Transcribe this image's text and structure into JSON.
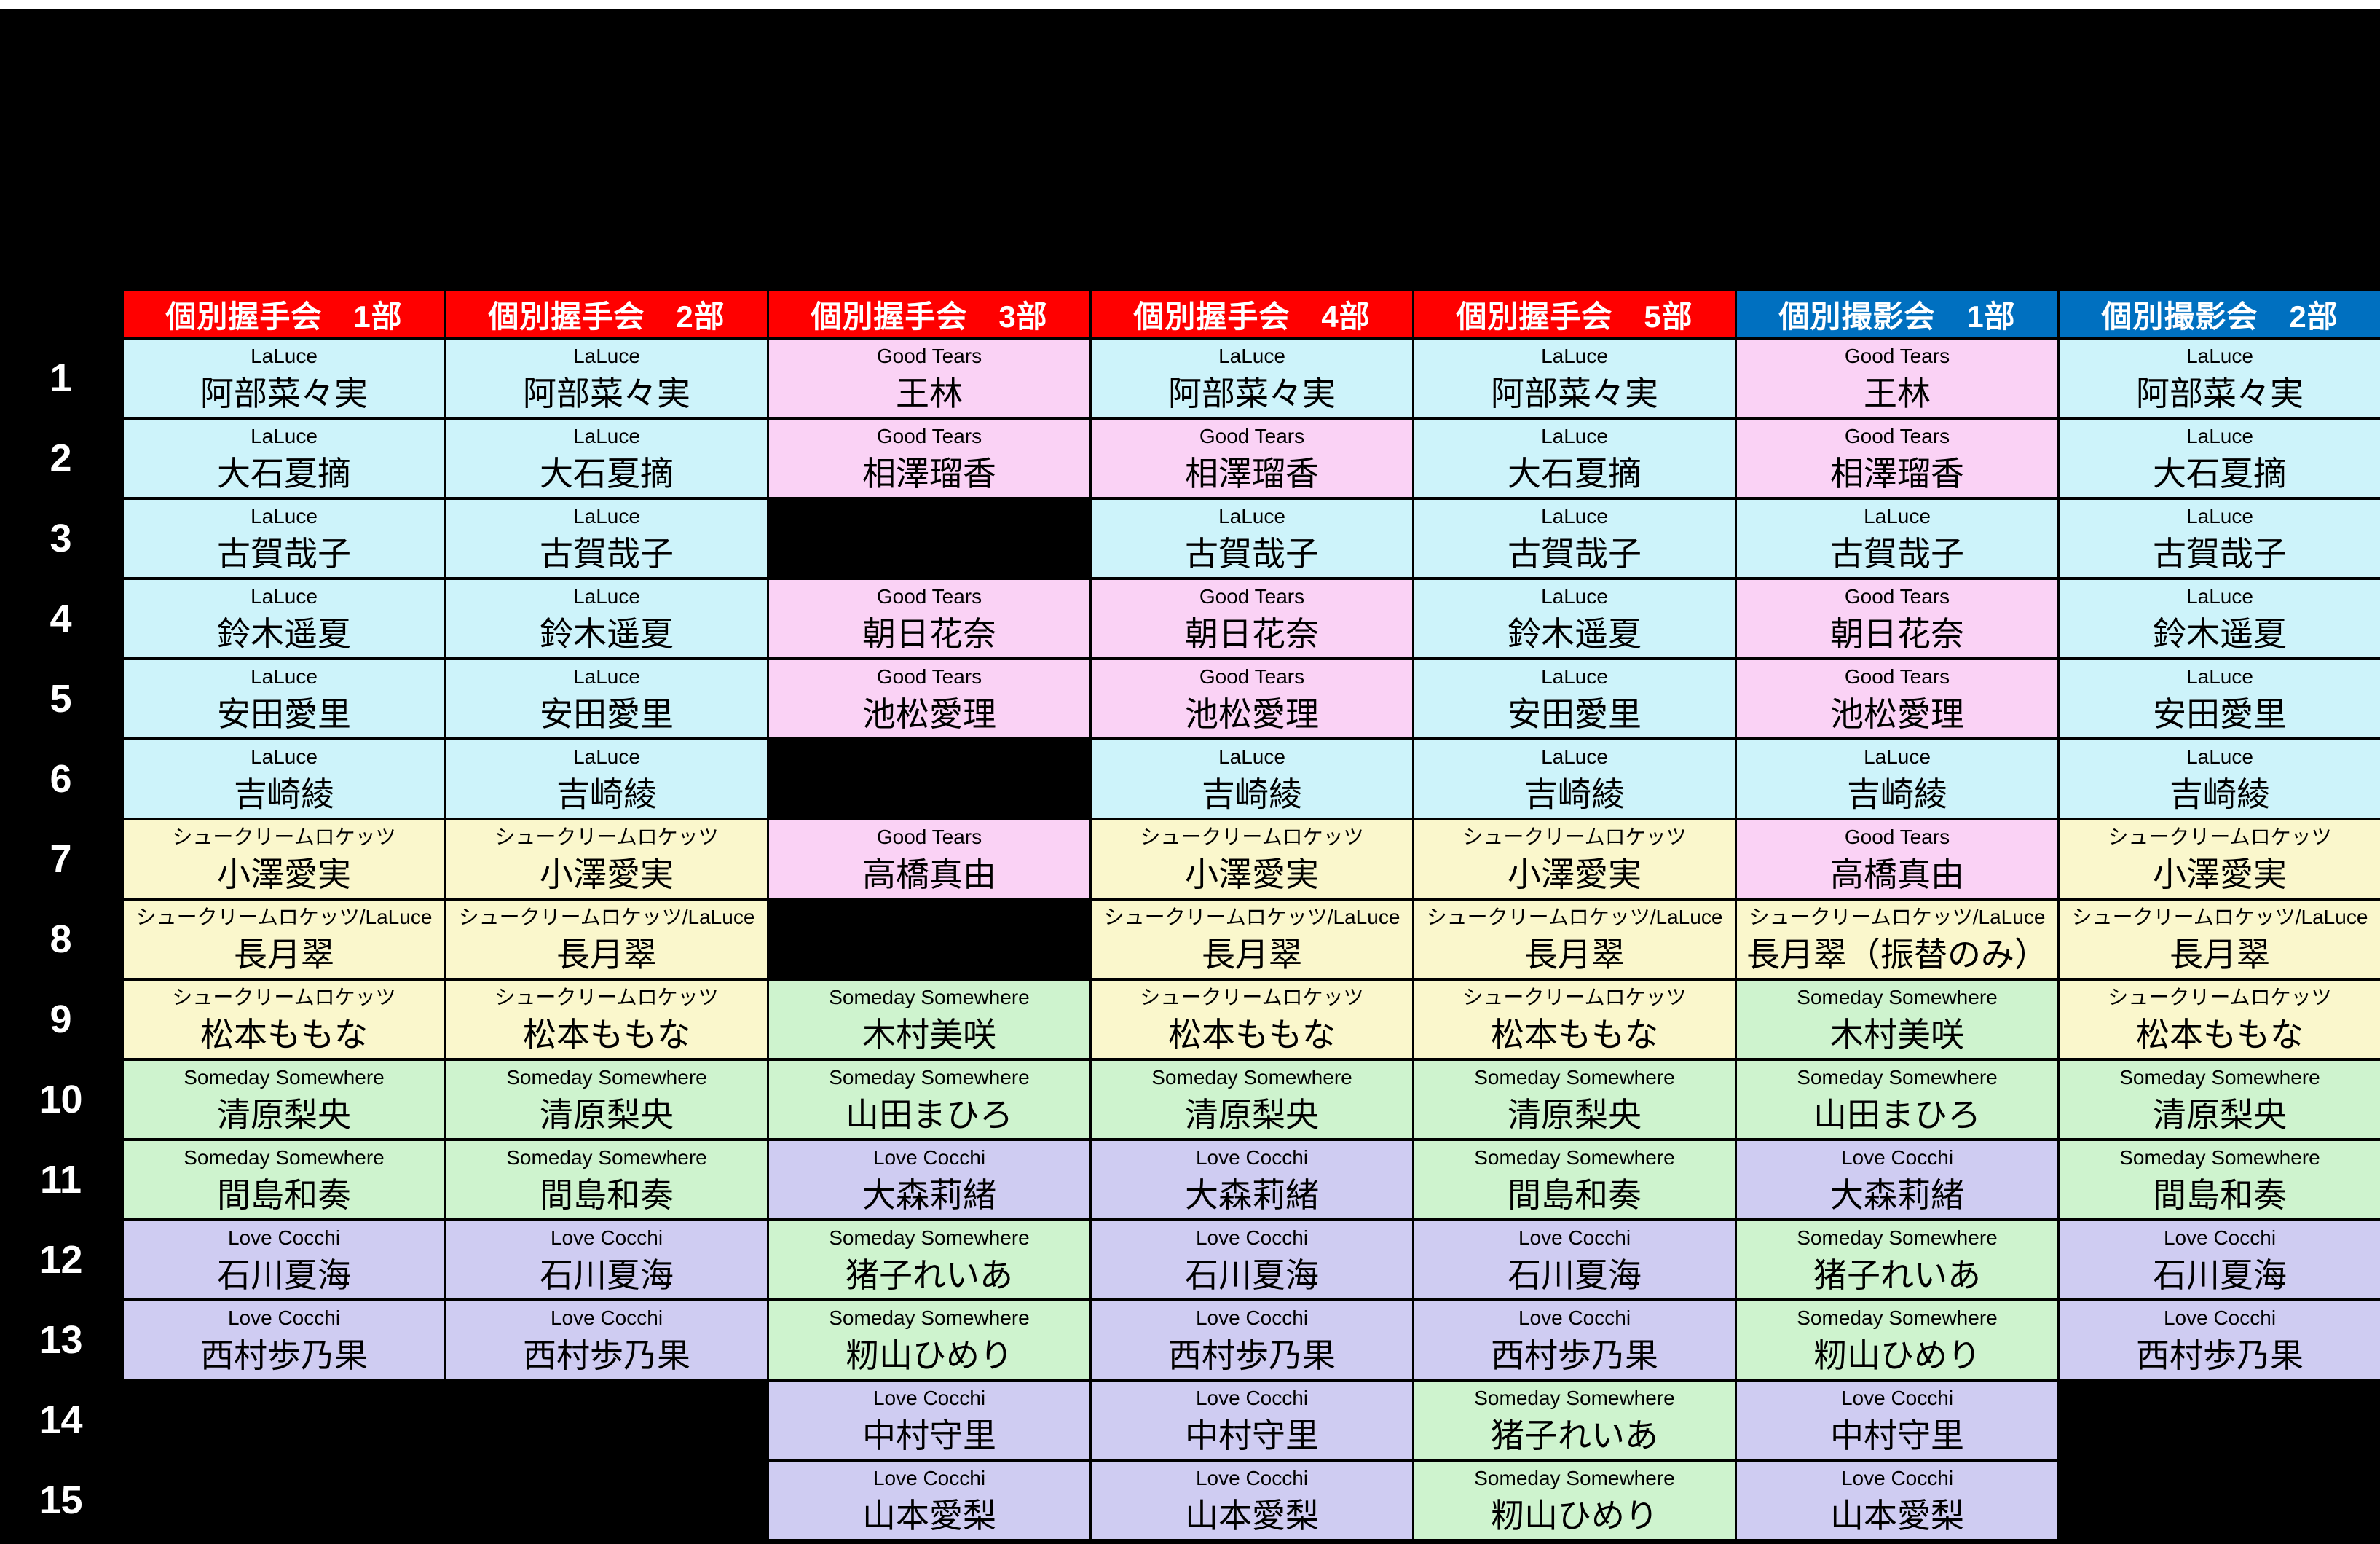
{
  "colors": {
    "background": "#000000",
    "top_strip": "#FFFFFF",
    "header_red": "#FF0000",
    "header_blue": "#0070C0",
    "header_text": "#FFFFFF",
    "row_number_text": "#FFFFFF",
    "cell_text": "#000000",
    "empty_cell": "#000000"
  },
  "group_colors": {
    "LaLuce": "#CDF3FA",
    "Good Tears": "#FAD2F5",
    "シュークリームロケッツ": "#FAF7CC",
    "シュークリームロケッツ/LaLuce": "#FAF7CC",
    "Someday Somewhere": "#CEF3CE",
    "Love Cocchi": "#CFCCF2"
  },
  "table": {
    "headers": [
      {
        "label": "個別握手会　1部",
        "color": "#FF0000"
      },
      {
        "label": "個別握手会　2部",
        "color": "#FF0000"
      },
      {
        "label": "個別握手会　3部",
        "color": "#FF0000"
      },
      {
        "label": "個別握手会　4部",
        "color": "#FF0000"
      },
      {
        "label": "個別握手会　5部",
        "color": "#FF0000"
      },
      {
        "label": "個別撮影会　1部",
        "color": "#0070C0"
      },
      {
        "label": "個別撮影会　2部",
        "color": "#0070C0"
      }
    ],
    "rows": [
      {
        "number": "1",
        "cells": [
          {
            "group": "LaLuce",
            "name": "阿部菜々実"
          },
          {
            "group": "LaLuce",
            "name": "阿部菜々実"
          },
          {
            "group": "Good Tears",
            "name": "王林"
          },
          {
            "group": "LaLuce",
            "name": "阿部菜々実"
          },
          {
            "group": "LaLuce",
            "name": "阿部菜々実"
          },
          {
            "group": "Good Tears",
            "name": "王林"
          },
          {
            "group": "LaLuce",
            "name": "阿部菜々実"
          }
        ]
      },
      {
        "number": "2",
        "cells": [
          {
            "group": "LaLuce",
            "name": "大石夏摘"
          },
          {
            "group": "LaLuce",
            "name": "大石夏摘"
          },
          {
            "group": "Good Tears",
            "name": "相澤瑠香"
          },
          {
            "group": "Good Tears",
            "name": "相澤瑠香"
          },
          {
            "group": "LaLuce",
            "name": "大石夏摘"
          },
          {
            "group": "Good Tears",
            "name": "相澤瑠香"
          },
          {
            "group": "LaLuce",
            "name": "大石夏摘"
          }
        ]
      },
      {
        "number": "3",
        "cells": [
          {
            "group": "LaLuce",
            "name": "古賀哉子"
          },
          {
            "group": "LaLuce",
            "name": "古賀哉子"
          },
          null,
          {
            "group": "LaLuce",
            "name": "古賀哉子"
          },
          {
            "group": "LaLuce",
            "name": "古賀哉子"
          },
          {
            "group": "LaLuce",
            "name": "古賀哉子"
          },
          {
            "group": "LaLuce",
            "name": "古賀哉子"
          }
        ]
      },
      {
        "number": "4",
        "cells": [
          {
            "group": "LaLuce",
            "name": "鈴木遥夏"
          },
          {
            "group": "LaLuce",
            "name": "鈴木遥夏"
          },
          {
            "group": "Good Tears",
            "name": "朝日花奈"
          },
          {
            "group": "Good Tears",
            "name": "朝日花奈"
          },
          {
            "group": "LaLuce",
            "name": "鈴木遥夏"
          },
          {
            "group": "Good Tears",
            "name": "朝日花奈"
          },
          {
            "group": "LaLuce",
            "name": "鈴木遥夏"
          }
        ]
      },
      {
        "number": "5",
        "cells": [
          {
            "group": "LaLuce",
            "name": "安田愛里"
          },
          {
            "group": "LaLuce",
            "name": "安田愛里"
          },
          {
            "group": "Good Tears",
            "name": "池松愛理"
          },
          {
            "group": "Good Tears",
            "name": "池松愛理"
          },
          {
            "group": "LaLuce",
            "name": "安田愛里"
          },
          {
            "group": "Good Tears",
            "name": "池松愛理"
          },
          {
            "group": "LaLuce",
            "name": "安田愛里"
          }
        ]
      },
      {
        "number": "6",
        "cells": [
          {
            "group": "LaLuce",
            "name": "吉崎綾"
          },
          {
            "group": "LaLuce",
            "name": "吉崎綾"
          },
          null,
          {
            "group": "LaLuce",
            "name": "吉崎綾"
          },
          {
            "group": "LaLuce",
            "name": "吉崎綾"
          },
          {
            "group": "LaLuce",
            "name": "吉崎綾"
          },
          {
            "group": "LaLuce",
            "name": "吉崎綾"
          }
        ]
      },
      {
        "number": "7",
        "cells": [
          {
            "group": "シュークリームロケッツ",
            "name": "小澤愛実"
          },
          {
            "group": "シュークリームロケッツ",
            "name": "小澤愛実"
          },
          {
            "group": "Good Tears",
            "name": "高橋真由"
          },
          {
            "group": "シュークリームロケッツ",
            "name": "小澤愛実"
          },
          {
            "group": "シュークリームロケッツ",
            "name": "小澤愛実"
          },
          {
            "group": "Good Tears",
            "name": "高橋真由"
          },
          {
            "group": "シュークリームロケッツ",
            "name": "小澤愛実"
          }
        ]
      },
      {
        "number": "8",
        "cells": [
          {
            "group": "シュークリームロケッツ/LaLuce",
            "name": "長月翠"
          },
          {
            "group": "シュークリームロケッツ/LaLuce",
            "name": "長月翠"
          },
          null,
          {
            "group": "シュークリームロケッツ/LaLuce",
            "name": "長月翠"
          },
          {
            "group": "シュークリームロケッツ/LaLuce",
            "name": "長月翠"
          },
          {
            "group": "シュークリームロケッツ/LaLuce",
            "name": "長月翠（振替のみ）"
          },
          {
            "group": "シュークリームロケッツ/LaLuce",
            "name": "長月翠"
          }
        ]
      },
      {
        "number": "9",
        "cells": [
          {
            "group": "シュークリームロケッツ",
            "name": "松本ももな"
          },
          {
            "group": "シュークリームロケッツ",
            "name": "松本ももな"
          },
          {
            "group": "Someday Somewhere",
            "name": "木村美咲"
          },
          {
            "group": "シュークリームロケッツ",
            "name": "松本ももな"
          },
          {
            "group": "シュークリームロケッツ",
            "name": "松本ももな"
          },
          {
            "group": "Someday Somewhere",
            "name": "木村美咲"
          },
          {
            "group": "シュークリームロケッツ",
            "name": "松本ももな"
          }
        ]
      },
      {
        "number": "10",
        "cells": [
          {
            "group": "Someday Somewhere",
            "name": "清原梨央"
          },
          {
            "group": "Someday Somewhere",
            "name": "清原梨央"
          },
          {
            "group": "Someday Somewhere",
            "name": "山田まひろ"
          },
          {
            "group": "Someday Somewhere",
            "name": "清原梨央"
          },
          {
            "group": "Someday Somewhere",
            "name": "清原梨央"
          },
          {
            "group": "Someday Somewhere",
            "name": "山田まひろ"
          },
          {
            "group": "Someday Somewhere",
            "name": "清原梨央"
          }
        ]
      },
      {
        "number": "11",
        "cells": [
          {
            "group": "Someday Somewhere",
            "name": "間島和奏"
          },
          {
            "group": "Someday Somewhere",
            "name": "間島和奏"
          },
          {
            "group": "Love Cocchi",
            "name": "大森莉緒"
          },
          {
            "group": "Love Cocchi",
            "name": "大森莉緒"
          },
          {
            "group": "Someday Somewhere",
            "name": "間島和奏"
          },
          {
            "group": "Love Cocchi",
            "name": "大森莉緒"
          },
          {
            "group": "Someday Somewhere",
            "name": "間島和奏"
          }
        ]
      },
      {
        "number": "12",
        "cells": [
          {
            "group": "Love Cocchi",
            "name": "石川夏海"
          },
          {
            "group": "Love Cocchi",
            "name": "石川夏海"
          },
          {
            "group": "Someday Somewhere",
            "name": "猪子れいあ"
          },
          {
            "group": "Love Cocchi",
            "name": "石川夏海"
          },
          {
            "group": "Love Cocchi",
            "name": "石川夏海"
          },
          {
            "group": "Someday Somewhere",
            "name": "猪子れいあ"
          },
          {
            "group": "Love Cocchi",
            "name": "石川夏海"
          }
        ]
      },
      {
        "number": "13",
        "cells": [
          {
            "group": "Love Cocchi",
            "name": "西村歩乃果"
          },
          {
            "group": "Love Cocchi",
            "name": "西村歩乃果"
          },
          {
            "group": "Someday Somewhere",
            "name": "籾山ひめり"
          },
          {
            "group": "Love Cocchi",
            "name": "西村歩乃果"
          },
          {
            "group": "Love Cocchi",
            "name": "西村歩乃果"
          },
          {
            "group": "Someday Somewhere",
            "name": "籾山ひめり"
          },
          {
            "group": "Love Cocchi",
            "name": "西村歩乃果"
          }
        ]
      },
      {
        "number": "14",
        "cells": [
          null,
          null,
          {
            "group": "Love Cocchi",
            "name": "中村守里"
          },
          {
            "group": "Love Cocchi",
            "name": "中村守里"
          },
          {
            "group": "Someday Somewhere",
            "name": "猪子れいあ"
          },
          {
            "group": "Love Cocchi",
            "name": "中村守里"
          },
          null
        ]
      },
      {
        "number": "15",
        "cells": [
          null,
          null,
          {
            "group": "Love Cocchi",
            "name": "山本愛梨"
          },
          {
            "group": "Love Cocchi",
            "name": "山本愛梨"
          },
          {
            "group": "Someday Somewhere",
            "name": "籾山ひめり"
          },
          {
            "group": "Love Cocchi",
            "name": "山本愛梨"
          },
          null
        ]
      }
    ]
  }
}
